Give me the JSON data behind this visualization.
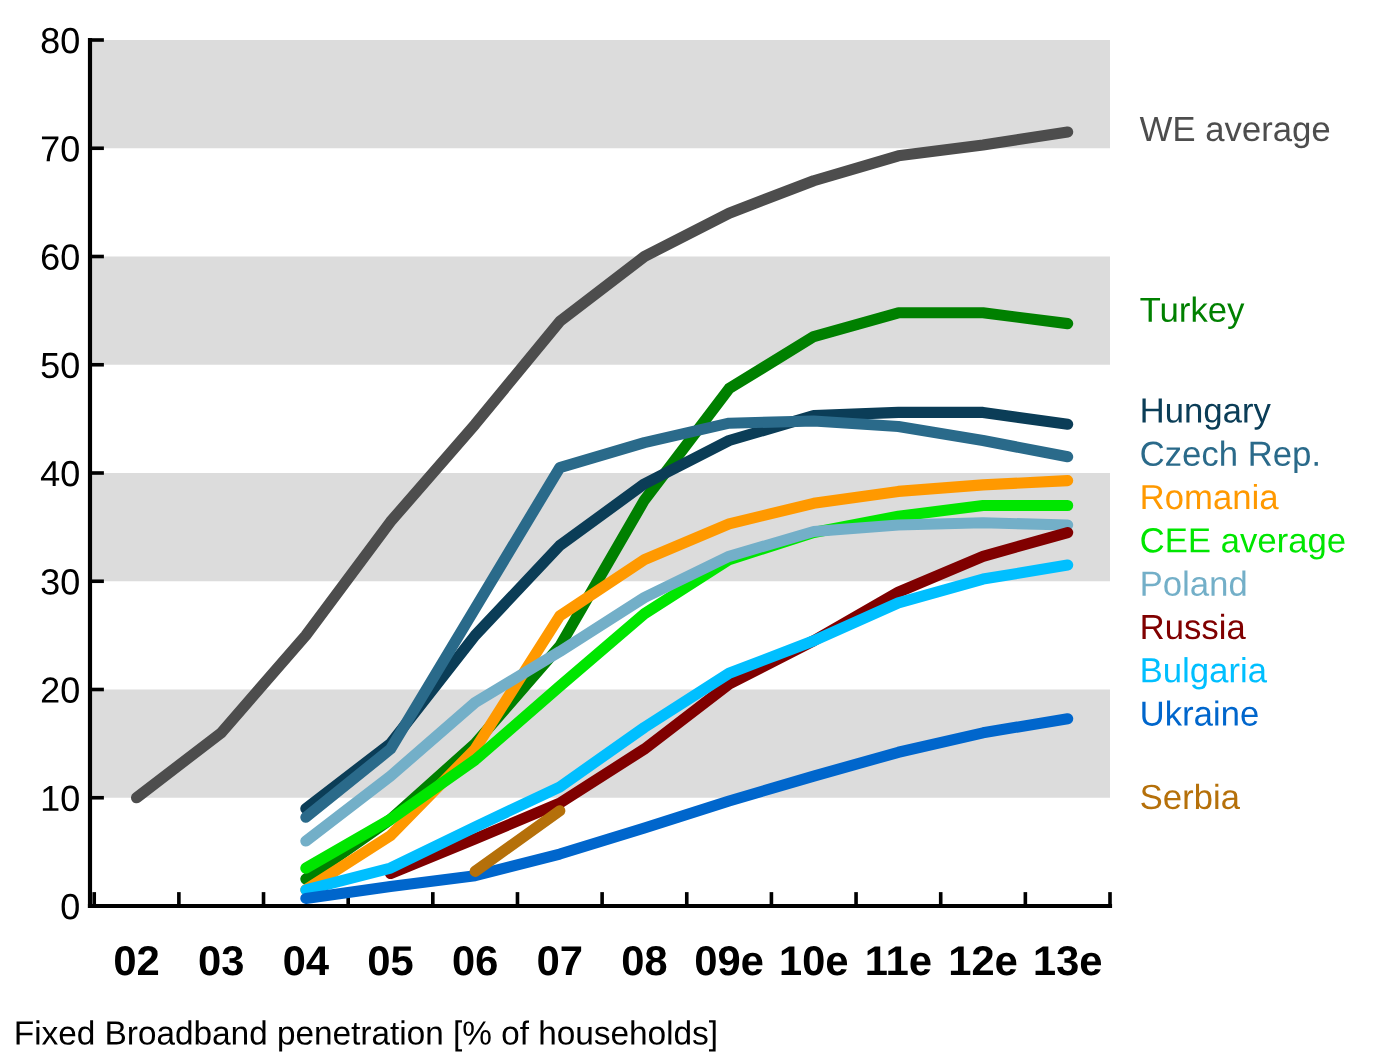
{
  "chart_data": {
    "type": "line",
    "xlabel": "Fixed Broadband penetration [% of households]",
    "categories": [
      "02",
      "03",
      "04",
      "05",
      "06",
      "07",
      "08",
      "09e",
      "10e",
      "11e",
      "12e",
      "13e"
    ],
    "ylim": [
      0,
      80
    ],
    "yticks": [
      0,
      10,
      20,
      30,
      40,
      50,
      60,
      70,
      80
    ],
    "grid": false,
    "legend": false,
    "marker": "none",
    "line_style": "solid",
    "bands": [
      {
        "axis": "y",
        "from": 10,
        "to": 20,
        "color": "#dcdcdc"
      },
      {
        "axis": "y",
        "from": 30,
        "to": 40,
        "color": "#dcdcdc"
      },
      {
        "axis": "y",
        "from": 50,
        "to": 60,
        "color": "#dcdcdc"
      },
      {
        "axis": "y",
        "from": 70,
        "to": 80,
        "color": "#dcdcdc"
      }
    ],
    "series": [
      {
        "name": "WE average",
        "color": "#4d4d4d",
        "values": [
          10,
          16,
          25,
          35.5,
          44.5,
          54,
          60,
          64,
          67,
          69.3,
          70.3,
          71.5
        ]
      },
      {
        "name": "Turkey",
        "color": "#008000",
        "values": [
          null,
          null,
          2.5,
          8,
          15,
          24,
          37.5,
          47.8,
          52.6,
          54.8,
          54.8,
          53.8
        ]
      },
      {
        "name": "Hungary",
        "color": "#0b3d57",
        "values": [
          null,
          null,
          9,
          15,
          25,
          33.3,
          39,
          43,
          45.3,
          45.6,
          45.6,
          44.5
        ]
      },
      {
        "name": "Czech Rep.",
        "color": "#2a6a8a",
        "values": [
          null,
          null,
          8.2,
          14.5,
          27.5,
          40.5,
          42.8,
          44.6,
          44.8,
          44.3,
          43,
          41.5
        ]
      },
      {
        "name": "Romania",
        "color": "#ff9900",
        "values": [
          null,
          null,
          1.5,
          6.5,
          14.5,
          26.8,
          32,
          35.3,
          37.2,
          38.3,
          38.9,
          39.3
        ]
      },
      {
        "name": "CEE average",
        "color": "#00e600",
        "values": [
          null,
          null,
          3.5,
          8,
          13.5,
          20.3,
          27,
          32,
          34.5,
          36,
          37,
          37
        ]
      },
      {
        "name": "Poland",
        "color": "#73afc8",
        "values": [
          null,
          null,
          6,
          12,
          18.8,
          23.5,
          28.5,
          32.3,
          34.6,
          35.2,
          35.4,
          35.2
        ]
      },
      {
        "name": "Russia",
        "color": "#800000",
        "values": [
          null,
          null,
          null,
          3,
          6.2,
          9.5,
          14.5,
          20.5,
          24.5,
          29,
          32.3,
          34.5
        ]
      },
      {
        "name": "Bulgaria",
        "color": "#00bfff",
        "values": [
          null,
          null,
          1.5,
          3.5,
          7.3,
          11,
          16.5,
          21.5,
          24.5,
          28,
          30.2,
          31.5
        ]
      },
      {
        "name": "Ukraine",
        "color": "#0066cc",
        "values": [
          null,
          null,
          0.7,
          1.8,
          2.8,
          4.8,
          7.2,
          9.7,
          12,
          14.2,
          16,
          17.3
        ]
      },
      {
        "name": "Serbia",
        "color": "#b5700a",
        "values": [
          null,
          null,
          null,
          null,
          3.2,
          8.8,
          null,
          null,
          null,
          null,
          null,
          null
        ]
      }
    ]
  }
}
